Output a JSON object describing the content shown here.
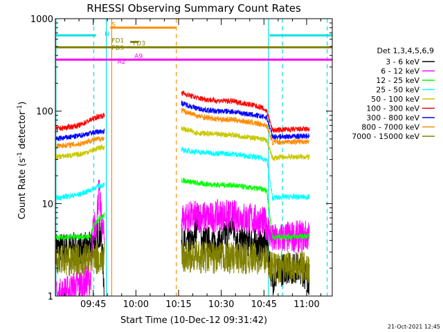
{
  "chart_data": {
    "type": "line",
    "title": "RHESSI Observing Summary Count Rates",
    "xlabel": "Start Time (10-Dec-12 09:31:42)",
    "ylabel_main": "Count Rate (s",
    "ylabel_sup1": "-1",
    "ylabel_mid": " detector",
    "ylabel_sup2": "-1",
    "ylabel_end": ")",
    "y_scale": "log",
    "ylim": [
      1,
      1000
    ],
    "xlim_minutes_after_0930": [
      1.7,
      99.0
    ],
    "x_ticks": [
      {
        "label": "09:45",
        "minutes": 15
      },
      {
        "label": "10:00",
        "minutes": 30
      },
      {
        "label": "10:15",
        "minutes": 45
      },
      {
        "label": "10:30",
        "minutes": 60
      },
      {
        "label": "10:45",
        "minutes": 75
      },
      {
        "label": "11:00",
        "minutes": 90
      }
    ],
    "y_ticks": [
      {
        "label": "1",
        "value": 1
      },
      {
        "label": "10",
        "value": 10
      },
      {
        "label": "100",
        "value": 100
      },
      {
        "label": "1000",
        "value": 1000
      }
    ],
    "legend_title": "Det 1,3,4,5,6,9",
    "legend_position": "right",
    "series": [
      {
        "name": "3 - 6 keV",
        "color": "#000000",
        "segments": [
          [
            [
              2,
              3.3
            ],
            [
              14,
              3.3
            ],
            [
              15,
              3.6
            ],
            [
              17,
              5.0
            ],
            [
              18,
              3.8
            ],
            [
              19,
              1.0
            ]
          ],
          [
            [
              46,
              3.6
            ],
            [
              50,
              3.7
            ],
            [
              52,
              8.0
            ],
            [
              53,
              4.0
            ],
            [
              60,
              3.7
            ],
            [
              64,
              6.0
            ],
            [
              66,
              3.8
            ],
            [
              70,
              4.0
            ],
            [
              73,
              3.5
            ],
            [
              76,
              3.6
            ],
            [
              78,
              1.5
            ],
            [
              82,
              2.0
            ],
            [
              88,
              2.0
            ],
            [
              91,
              1.5
            ]
          ]
        ]
      },
      {
        "name": "6 - 12 keV",
        "color": "#ff00ff",
        "segments": [
          [
            [
              2,
              1.0
            ],
            [
              14,
              1.5
            ],
            [
              15,
              5.5
            ],
            [
              16,
              5.8
            ],
            [
              17,
              14.0
            ],
            [
              18,
              6.0
            ],
            [
              19,
              4.0
            ]
          ],
          [
            [
              46,
              7.0
            ],
            [
              52,
              7.3
            ],
            [
              56,
              7.0
            ],
            [
              60,
              7.6
            ],
            [
              66,
              7.2
            ],
            [
              70,
              6.9
            ],
            [
              74,
              6.4
            ],
            [
              76,
              6.0
            ],
            [
              78,
              4.0
            ],
            [
              82,
              4.3
            ],
            [
              91,
              4.5
            ]
          ]
        ]
      },
      {
        "name": "12 - 25 keV",
        "color": "#00ff00",
        "segments": [
          [
            [
              2,
              4.3
            ],
            [
              14,
              4.4
            ],
            [
              15,
              5.5
            ],
            [
              17,
              7.0
            ],
            [
              19,
              7.4
            ]
          ],
          [
            [
              46,
              18.0
            ],
            [
              52,
              16.5
            ],
            [
              58,
              16.0
            ],
            [
              64,
              15.8
            ],
            [
              70,
              14.8
            ],
            [
              74,
              14.4
            ],
            [
              76,
              13.8
            ],
            [
              78,
              4.3
            ],
            [
              82,
              4.4
            ],
            [
              91,
              4.4
            ]
          ]
        ]
      },
      {
        "name": "25 - 50 keV",
        "color": "#00ffff",
        "segments": [
          [
            [
              2,
              11.5
            ],
            [
              10,
              12.5
            ],
            [
              14,
              14.0
            ],
            [
              17,
              15.5
            ],
            [
              19,
              16.0
            ]
          ],
          [
            [
              46,
              38.0
            ],
            [
              52,
              36.0
            ],
            [
              58,
              35.0
            ],
            [
              64,
              34.5
            ],
            [
              70,
              32.5
            ],
            [
              74,
              31.0
            ],
            [
              76,
              30.0
            ],
            [
              78,
              11.5
            ],
            [
              82,
              11.8
            ],
            [
              91,
              11.8
            ]
          ]
        ]
      },
      {
        "name": "50 - 100 keV",
        "color": "#c8c800",
        "segments": [
          [
            [
              2,
              32.0
            ],
            [
              10,
              34.0
            ],
            [
              14,
              37.0
            ],
            [
              17,
              40.0
            ],
            [
              19,
              41.0
            ]
          ],
          [
            [
              46,
              65.0
            ],
            [
              52,
              58.0
            ],
            [
              58,
              56.0
            ],
            [
              64,
              55.5
            ],
            [
              70,
              52.0
            ],
            [
              74,
              50.0
            ],
            [
              76,
              48.0
            ],
            [
              78,
              31.0
            ],
            [
              82,
              32.0
            ],
            [
              91,
              32.0
            ]
          ]
        ]
      },
      {
        "name": "100 - 300 keV",
        "color": "#ff0000",
        "segments": [
          [
            [
              2,
              64.0
            ],
            [
              10,
              70.0
            ],
            [
              14,
              80.0
            ],
            [
              17,
              88.0
            ],
            [
              19,
              90.0
            ]
          ],
          [
            [
              46,
              158.0
            ],
            [
              52,
              138.0
            ],
            [
              58,
              130.0
            ],
            [
              64,
              128.0
            ],
            [
              70,
              118.0
            ],
            [
              74,
              110.0
            ],
            [
              76,
              100.0
            ],
            [
              78,
              62.0
            ],
            [
              82,
              63.0
            ],
            [
              91,
              64.0
            ]
          ]
        ]
      },
      {
        "name": "300 - 800 keV",
        "color": "#0000ff",
        "segments": [
          [
            [
              2,
              50.0
            ],
            [
              10,
              54.0
            ],
            [
              14,
              58.0
            ],
            [
              17,
              60.0
            ],
            [
              19,
              61.0
            ]
          ],
          [
            [
              46,
              122.0
            ],
            [
              52,
              106.0
            ],
            [
              58,
              100.0
            ],
            [
              64,
              99.0
            ],
            [
              70,
              92.0
            ],
            [
              74,
              88.0
            ],
            [
              76,
              85.0
            ],
            [
              78,
              53.0
            ],
            [
              82,
              53.0
            ],
            [
              91,
              54.0
            ]
          ]
        ]
      },
      {
        "name": "800 - 7000 keV",
        "color": "#ff8c00",
        "segments": [
          [
            [
              2,
              42.0
            ],
            [
              10,
              44.0
            ],
            [
              14,
              48.0
            ],
            [
              17,
              50.0
            ],
            [
              19,
              51.0
            ]
          ],
          [
            [
              46,
              102.0
            ],
            [
              52,
              88.0
            ],
            [
              58,
              82.0
            ],
            [
              64,
              81.0
            ],
            [
              70,
              76.0
            ],
            [
              74,
              72.0
            ],
            [
              76,
              70.0
            ],
            [
              78,
              46.0
            ],
            [
              82,
              46.5
            ],
            [
              91,
              47.0
            ]
          ]
        ]
      },
      {
        "name": "7000 - 15000 keV",
        "color": "#808000",
        "segments": [
          [
            [
              2,
              2.6
            ],
            [
              8,
              2.4
            ],
            [
              14,
              2.5
            ],
            [
              19,
              2.6
            ]
          ],
          [
            [
              46,
              2.7
            ],
            [
              56,
              2.6
            ],
            [
              66,
              2.6
            ],
            [
              76,
              2.5
            ],
            [
              78,
              2.0
            ],
            [
              86,
              2.1
            ],
            [
              91,
              2.0
            ]
          ]
        ]
      }
    ],
    "flag_lines": [
      {
        "name": "N",
        "color": "#00e0e0",
        "value": 660,
        "segments": [
          [
            1.7,
            16.0
          ],
          [
            77.0,
            99.0
          ]
        ]
      },
      {
        "name": "S",
        "color": "#ff8c00",
        "value": 800,
        "segments": [
          [
            21.0,
            44.0
          ]
        ]
      },
      {
        "name": "FD1",
        "color": "#808000",
        "value": 560,
        "segments": [
          [
            28.0,
            31.0
          ]
        ]
      },
      {
        "name": "FD9",
        "color": "#808000",
        "value": 490,
        "segments": [
          [
            1.7,
            99.0
          ]
        ]
      },
      {
        "name": "A2",
        "color": "#ff00ff",
        "value": 360,
        "segments": [
          [
            1.7,
            99.0
          ]
        ]
      }
    ],
    "flag_labels": [
      {
        "text": "N",
        "color": "#00e0e0",
        "x": 19.0,
        "y": 650
      },
      {
        "text": "S",
        "color": "#ff8c00",
        "x": 21.5,
        "y": 820
      },
      {
        "text": "FD1",
        "color": "#808000",
        "x": 21.5,
        "y": 550
      },
      {
        "text": "FD9",
        "color": "#808000",
        "x": 21.5,
        "y": 460
      },
      {
        "text": "FD3",
        "color": "#808000",
        "x": 29.0,
        "y": 515
      },
      {
        "text": "A2",
        "color": "#ff00ff",
        "x": 23.5,
        "y": 325
      },
      {
        "text": "A9",
        "color": "#ff00ff",
        "x": 29.5,
        "y": 375
      }
    ],
    "vertical_lines": [
      {
        "color": "#00e0e0",
        "style": "solid",
        "minutes": 19.6
      },
      {
        "color": "#00e0e0",
        "style": "dashed",
        "minutes": 15.2
      },
      {
        "color": "#ff8c00",
        "style": "solid",
        "minutes": 21.5
      },
      {
        "color": "#ff8c00",
        "style": "dashed",
        "minutes": 44.2
      },
      {
        "color": "#00e0e0",
        "style": "solid",
        "minutes": 76.6
      },
      {
        "color": "#00e0e0",
        "style": "dashed",
        "minutes": 81.5
      },
      {
        "color": "#00e0e0",
        "style": "dashed",
        "minutes": 97.2
      },
      {
        "color": "#00e0e0",
        "style": "solid",
        "minutes": 1.9
      }
    ]
  },
  "footer_timestamp": "21-Oct-2021 12:45"
}
